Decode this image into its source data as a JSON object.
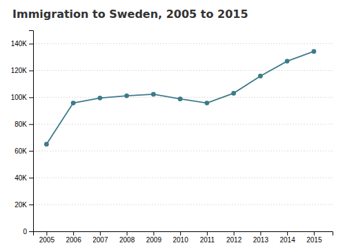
{
  "chart_data": {
    "type": "line",
    "title": "Immigration to Sweden, 2005 to 2015",
    "x": [
      2005,
      2006,
      2007,
      2008,
      2009,
      2010,
      2011,
      2012,
      2013,
      2014,
      2015
    ],
    "values": [
      65000,
      95750,
      99485,
      101171,
      102280,
      98801,
      95750,
      103059,
      115845,
      126966,
      134240
    ],
    "color": "#3d7a8a",
    "marker": "circle",
    "xlim": [
      2004.5,
      2015.7
    ],
    "xticks": [
      2005,
      2006,
      2007,
      2008,
      2009,
      2010,
      2011,
      2012,
      2013,
      2014,
      2015
    ],
    "ylim": [
      0,
      150000
    ],
    "yticks": [
      0,
      {
        "value": 20000,
        "label": "20K"
      },
      {
        "value": 40000,
        "label": "40K"
      },
      {
        "value": 60000,
        "label": "60K"
      },
      {
        "value": 80000,
        "label": "80K"
      },
      {
        "value": 100000,
        "label": "100K"
      },
      {
        "value": 120000,
        "label": "120K"
      },
      {
        "value": 140000,
        "label": "140K"
      }
    ],
    "grid": true
  }
}
